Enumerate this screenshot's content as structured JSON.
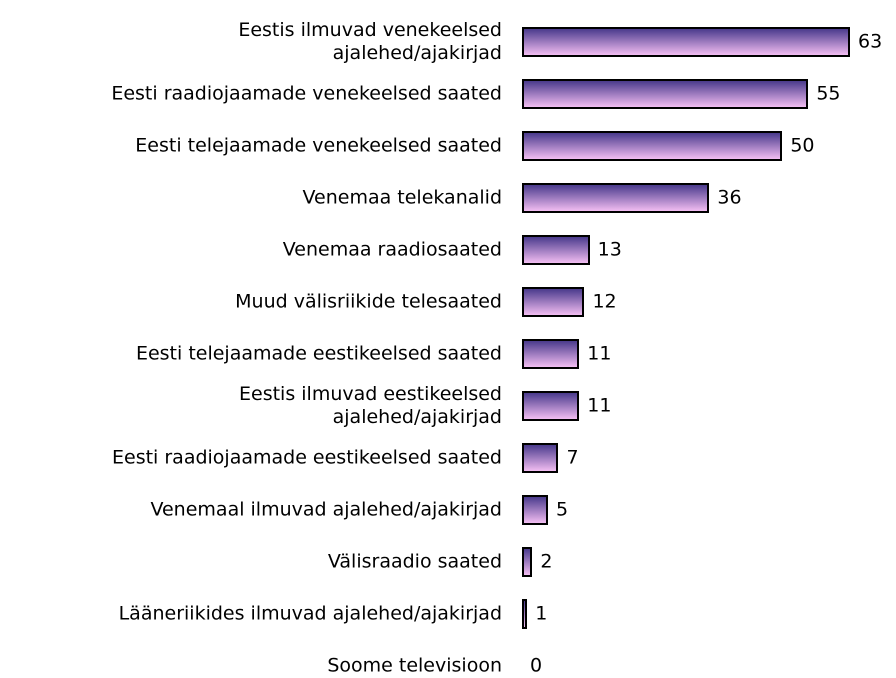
{
  "chart_data": {
    "type": "bar",
    "orientation": "horizontal",
    "categories": [
      "Eestis ilmuvad venekeelsed\najalehed/ajakirjad",
      "Eesti raadiojaamade venekeelsed saated",
      "Eesti telejaamade venekeelsed saated",
      "Venemaa telekanalid",
      "Venemaa raadiosaated",
      "Muud välisriikide telesaated",
      "Eesti telejaamade eestikeelsed saated",
      "Eestis ilmuvad eestikeelsed\najalehed/ajakirjad",
      "Eesti raadiojaamade eestikeelsed saated",
      "Venemaal ilmuvad ajalehed/ajakirjad",
      "Välisraadio saated",
      "Lääneriikides ilmuvad ajalehed/ajakirjad",
      "Soome televisioon"
    ],
    "values": [
      63,
      55,
      50,
      36,
      13,
      12,
      11,
      11,
      7,
      5,
      2,
      1,
      0
    ],
    "color": [
      "#4a3a8c",
      "#f2bdf2"
    ]
  }
}
